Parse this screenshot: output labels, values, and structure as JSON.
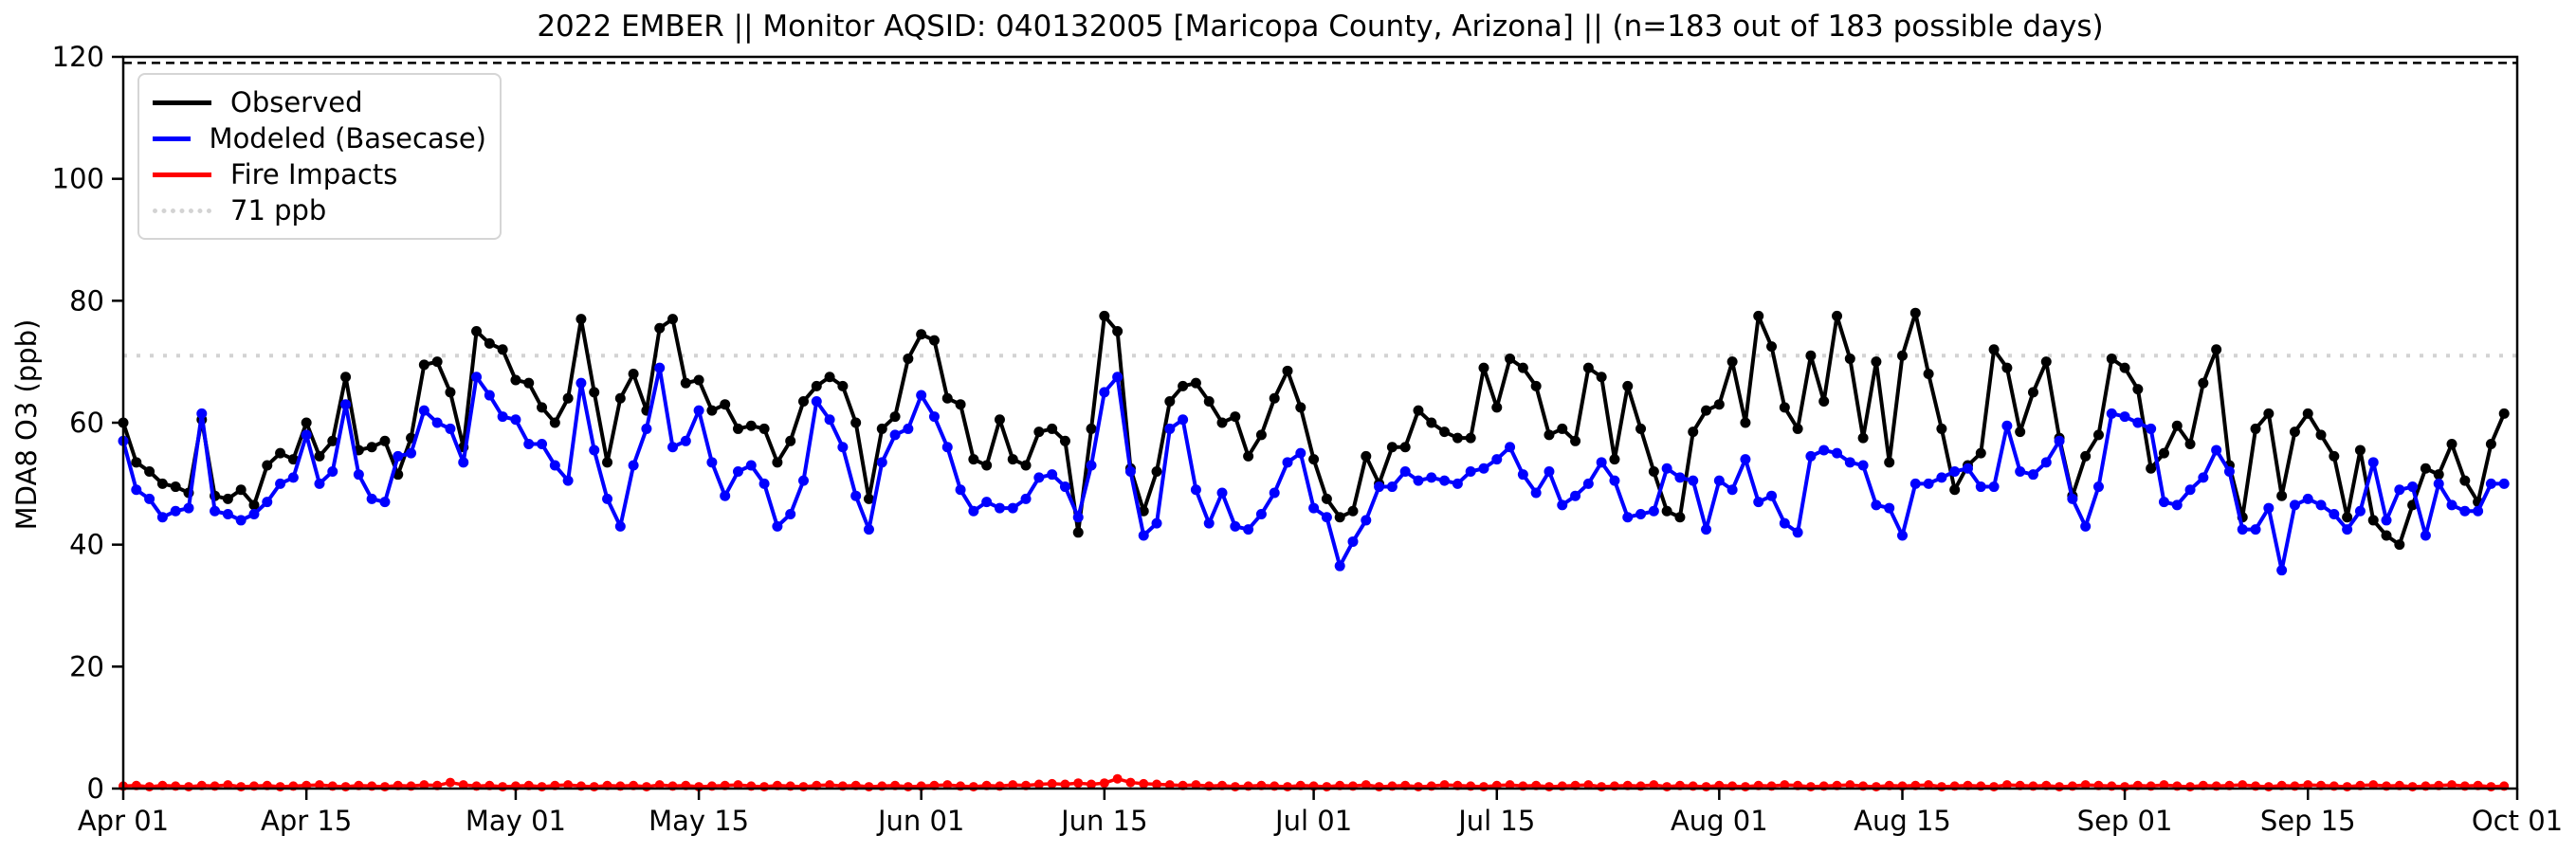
{
  "title": "2022 EMBER || Monitor AQSID: 040132005 [Maricopa County, Arizona] || (n=183 out of 183 possible days)",
  "axes": {
    "ylabel": "MDA8 O3 (ppb)",
    "ylim": [
      0,
      120
    ],
    "yticks": [
      0,
      20,
      40,
      60,
      80,
      100,
      120
    ],
    "xtick_labels": [
      "Apr 01",
      "Apr 15",
      "May 01",
      "May 15",
      "Jun 01",
      "Jun 15",
      "Jul 01",
      "Jul 15",
      "Aug 01",
      "Aug 15",
      "Sep 01",
      "Sep 15",
      "Oct 01"
    ],
    "xtick_days": [
      0,
      14,
      30,
      44,
      61,
      75,
      91,
      105,
      122,
      136,
      153,
      167,
      183
    ]
  },
  "legend": {
    "items": [
      {
        "label": "Observed",
        "color": "#000000",
        "line": "solid"
      },
      {
        "label": "Modeled (Basecase)",
        "color": "#0000ff",
        "line": "solid"
      },
      {
        "label": "Fire Impacts",
        "color": "#ff0000",
        "line": "solid"
      },
      {
        "label": "71 ppb",
        "color": "#d3d3d3",
        "line": "dotted"
      }
    ]
  },
  "threshold": {
    "label": "71 ppb",
    "value": 71,
    "color": "#d3d3d3",
    "style": "dotted"
  },
  "top_dashed_line": {
    "value": 119,
    "color": "#000000",
    "style": "dashed"
  },
  "chart_data": {
    "type": "line",
    "title": "2022 EMBER || Monitor AQSID: 040132005 [Maricopa County, Arizona] || (n=183 out of 183 possible days)",
    "xlabel": "",
    "ylabel": "MDA8 O3 (ppb)",
    "ylim": [
      0,
      120
    ],
    "grid": false,
    "legend_position": "upper left",
    "x_unit": "days since Apr 01, 2022",
    "x_start_date": "Apr 01",
    "x_end_date": "Oct 01",
    "n_days": 183,
    "threshold_ppb": 71,
    "series": [
      {
        "name": "Observed",
        "color": "#000000",
        "marker": "circle",
        "values": [
          60,
          53.5,
          52,
          50,
          49.5,
          48.5,
          60.5,
          48,
          47.5,
          49,
          46.5,
          53,
          55,
          54,
          60,
          54.5,
          57,
          67.5,
          55.5,
          56,
          57,
          51.5,
          57.5,
          69.5,
          70,
          65,
          56,
          75,
          73,
          72,
          67,
          66.5,
          62.5,
          60,
          64,
          77,
          65,
          53.5,
          64,
          68,
          62,
          75.5,
          77,
          66.5,
          67,
          62,
          63,
          59,
          59.5,
          59,
          53.5,
          57,
          63.5,
          66,
          67.5,
          66,
          60,
          47.5,
          59,
          61,
          70.5,
          74.5,
          73.5,
          64,
          63,
          54,
          53,
          60.5,
          54,
          53,
          58.5,
          59,
          57,
          42,
          59,
          77.5,
          75,
          52.5,
          45.5,
          52,
          63.5,
          66,
          66.5,
          63.5,
          60,
          61,
          54.5,
          58,
          64,
          68.5,
          62.5,
          54,
          47.5,
          44.5,
          45.5,
          54.5,
          50,
          56,
          56,
          62,
          60,
          58.5,
          57.5,
          57.5,
          69,
          62.5,
          70.5,
          69,
          66,
          58,
          59,
          57,
          69,
          67.5,
          54,
          66,
          59,
          52,
          45.5,
          44.5,
          58.5,
          62,
          63,
          70,
          60,
          77.5,
          72.5,
          62.5,
          59,
          71,
          63.5,
          77.5,
          70.5,
          57.5,
          70,
          53.5,
          71,
          78,
          68,
          59,
          49,
          53,
          55,
          72,
          69,
          58.5,
          65,
          70,
          57.5,
          48,
          54.5,
          58,
          70.5,
          69,
          65.5,
          52.5,
          55,
          59.5,
          56.5,
          66.5,
          72,
          53,
          44.5,
          59,
          61.5,
          48,
          58.5,
          61.5,
          58,
          54.5,
          44.5,
          55.5,
          44,
          41.5,
          40,
          46.5,
          52.5,
          51.5,
          56.5,
          50.5,
          47,
          56.5,
          61.5
        ]
      },
      {
        "name": "Modeled (Basecase)",
        "color": "#0000ff",
        "marker": "circle",
        "values": [
          57,
          49,
          47.5,
          44.5,
          45.5,
          46,
          61.5,
          45.5,
          45,
          44,
          45,
          47,
          50,
          51,
          58,
          50,
          52,
          63,
          51.5,
          47.5,
          47,
          54.5,
          55,
          62,
          60,
          59,
          53.5,
          67.5,
          64.5,
          61,
          60.5,
          56.5,
          56.5,
          53,
          50.5,
          66.5,
          55.5,
          47.5,
          43,
          53,
          59,
          69,
          56,
          57,
          62,
          53.5,
          48,
          52,
          53,
          50,
          43,
          45,
          50.5,
          63.5,
          60.5,
          56,
          48,
          42.5,
          53.5,
          58,
          59,
          64.5,
          61,
          56,
          49,
          45.5,
          47,
          46,
          46,
          47.5,
          51,
          51.5,
          49.5,
          44.5,
          53,
          65,
          67.5,
          52,
          41.5,
          43.5,
          59,
          60.5,
          49,
          43.5,
          48.5,
          43,
          42.5,
          45,
          48.5,
          53.5,
          55,
          46,
          44.5,
          36.5,
          40.5,
          44,
          49.5,
          49.5,
          52,
          50.5,
          51,
          50.5,
          50,
          52,
          52.5,
          54,
          56,
          51.5,
          48.5,
          52,
          46.5,
          48,
          50,
          53.5,
          50.5,
          44.5,
          45,
          45.5,
          52.5,
          51,
          50.5,
          42.5,
          50.5,
          49,
          54,
          47,
          48,
          43.5,
          42,
          54.5,
          55.5,
          55,
          53.5,
          53,
          46.5,
          46,
          41.5,
          50,
          50,
          51,
          52,
          52.5,
          49.5,
          49.5,
          59.5,
          52,
          51.5,
          53.5,
          57,
          47.5,
          43,
          49.5,
          61.5,
          61,
          60,
          59,
          47,
          46.5,
          49,
          51,
          55.5,
          52,
          42.5,
          42.5,
          46,
          35.8,
          46.5,
          47.5,
          46.5,
          45,
          42.5,
          45.5,
          53.5,
          44,
          49,
          49.5,
          41.5,
          50,
          46.5,
          45.5,
          45.5,
          50,
          50
        ]
      },
      {
        "name": "Fire Impacts",
        "color": "#ff0000",
        "marker": "circle",
        "values": [
          0.4,
          0.5,
          0.3,
          0.5,
          0.4,
          0.3,
          0.5,
          0.4,
          0.6,
          0.3,
          0.4,
          0.5,
          0.3,
          0.4,
          0.5,
          0.6,
          0.4,
          0.3,
          0.5,
          0.4,
          0.3,
          0.5,
          0.4,
          0.6,
          0.5,
          1.0,
          0.6,
          0.4,
          0.5,
          0.3,
          0.4,
          0.5,
          0.3,
          0.5,
          0.6,
          0.4,
          0.3,
          0.5,
          0.4,
          0.5,
          0.3,
          0.6,
          0.4,
          0.5,
          0.3,
          0.4,
          0.5,
          0.6,
          0.4,
          0.3,
          0.5,
          0.4,
          0.3,
          0.5,
          0.6,
          0.4,
          0.5,
          0.3,
          0.4,
          0.5,
          0.3,
          0.4,
          0.5,
          0.6,
          0.4,
          0.3,
          0.5,
          0.4,
          0.6,
          0.5,
          0.7,
          0.8,
          0.7,
          0.9,
          0.7,
          0.9,
          1.6,
          1.0,
          0.8,
          0.7,
          0.6,
          0.5,
          0.6,
          0.4,
          0.5,
          0.3,
          0.4,
          0.5,
          0.4,
          0.3,
          0.5,
          0.4,
          0.3,
          0.5,
          0.4,
          0.6,
          0.3,
          0.4,
          0.5,
          0.3,
          0.4,
          0.6,
          0.5,
          0.4,
          0.3,
          0.5,
          0.6,
          0.4,
          0.5,
          0.3,
          0.4,
          0.5,
          0.6,
          0.3,
          0.4,
          0.5,
          0.4,
          0.6,
          0.3,
          0.5,
          0.4,
          0.3,
          0.5,
          0.4,
          0.3,
          0.5,
          0.4,
          0.6,
          0.5,
          0.3,
          0.4,
          0.5,
          0.6,
          0.4,
          0.3,
          0.5,
          0.4,
          0.5,
          0.6,
          0.3,
          0.4,
          0.5,
          0.4,
          0.3,
          0.6,
          0.5,
          0.4,
          0.5,
          0.3,
          0.4,
          0.6,
          0.5,
          0.4,
          0.3,
          0.5,
          0.4,
          0.6,
          0.4,
          0.3,
          0.5,
          0.4,
          0.5,
          0.6,
          0.4,
          0.3,
          0.5,
          0.4,
          0.6,
          0.5,
          0.4,
          0.3,
          0.5,
          0.6,
          0.4,
          0.5,
          0.3,
          0.4,
          0.5,
          0.6,
          0.4,
          0.5,
          0.3,
          0.4
        ]
      }
    ],
    "xtick_labels": [
      "Apr 01",
      "Apr 15",
      "May 01",
      "May 15",
      "Jun 01",
      "Jun 15",
      "Jul 01",
      "Jul 15",
      "Aug 01",
      "Aug 15",
      "Sep 01",
      "Sep 15",
      "Oct 01"
    ],
    "xtick_days": [
      0,
      14,
      30,
      44,
      61,
      75,
      91,
      105,
      122,
      136,
      153,
      167,
      183
    ]
  }
}
